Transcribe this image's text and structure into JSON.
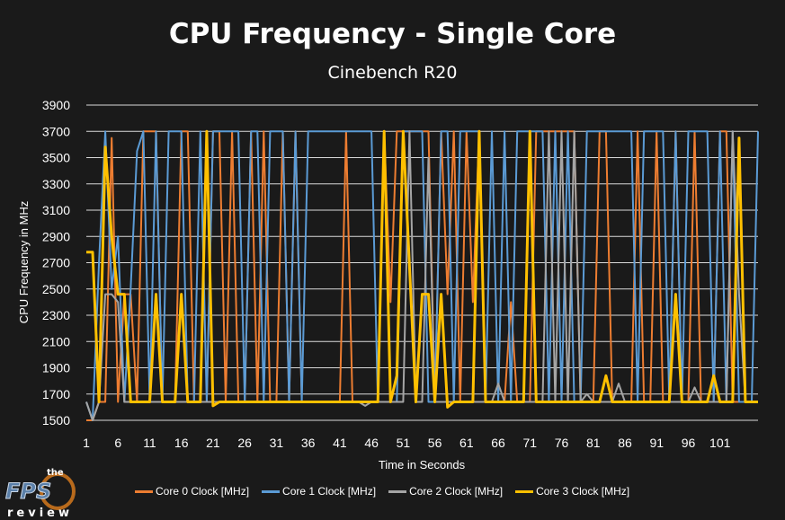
{
  "chart_data": {
    "type": "line",
    "title": "CPU Frequency - Single Core",
    "subtitle": "Cinebench R20",
    "xlabel": "Time in Seconds",
    "ylabel": "CPU Frequency in MHz",
    "xlim": [
      1,
      107
    ],
    "ylim": [
      1500,
      3900
    ],
    "x_ticks": [
      1,
      6,
      11,
      16,
      21,
      26,
      31,
      36,
      41,
      46,
      51,
      56,
      61,
      66,
      71,
      76,
      81,
      86,
      91,
      96,
      101
    ],
    "y_ticks": [
      1500,
      1700,
      1900,
      2100,
      2300,
      2500,
      2700,
      2900,
      3100,
      3300,
      3500,
      3700,
      3900
    ],
    "grid": "horizontal",
    "legend_placement": "bottom",
    "series": [
      {
        "name": "Core 0 Clock [MHz]",
        "color": "#ed7d31",
        "values": [
          1500,
          1500,
          1640,
          1640,
          3650,
          1640,
          2460,
          2460,
          1640,
          3700,
          3700,
          3700,
          1640,
          1640,
          1640,
          3700,
          3700,
          1640,
          1640,
          1640,
          3700,
          3700,
          1640,
          3700,
          1640,
          1640,
          3700,
          1640,
          3700,
          1640,
          1640,
          3700,
          1640,
          3700,
          1640,
          1640,
          1640,
          1640,
          1640,
          1640,
          1640,
          3700,
          1640,
          1640,
          1640,
          1640,
          1640,
          3700,
          2400,
          3700,
          3700,
          3700,
          3700,
          3700,
          3700,
          1640,
          3700,
          2460,
          3700,
          1640,
          3700,
          2400,
          3700,
          1640,
          1640,
          1640,
          1640,
          2400,
          1640,
          1640,
          1640,
          3700,
          3700,
          3700,
          3700,
          3700,
          3700,
          3700,
          1640,
          1640,
          1640,
          3700,
          3700,
          1640,
          1640,
          1640,
          1640,
          3700,
          1640,
          1640,
          3700,
          1640,
          1640,
          3700,
          1640,
          1640,
          3700,
          1640,
          1640,
          1640,
          3700,
          3700,
          1640,
          1640,
          1640,
          1640,
          1640
        ]
      },
      {
        "name": "Core 1 Clock [MHz]",
        "color": "#5b9bd5",
        "values": [
          1640,
          1500,
          2700,
          3700,
          2500,
          2900,
          1640,
          2500,
          3550,
          3700,
          1640,
          3700,
          1640,
          3700,
          3700,
          3700,
          1640,
          1640,
          3700,
          1640,
          3700,
          3700,
          3700,
          3700,
          3700,
          1640,
          3700,
          3700,
          1640,
          3700,
          3700,
          3700,
          1640,
          3700,
          1640,
          3700,
          3700,
          3700,
          3700,
          3700,
          3700,
          3700,
          3700,
          3700,
          3700,
          3700,
          1640,
          3700,
          1640,
          1640,
          3700,
          3700,
          3700,
          3700,
          1640,
          1640,
          3700,
          3700,
          1640,
          3700,
          3700,
          3700,
          3700,
          1640,
          3700,
          1640,
          3700,
          1640,
          3700,
          3700,
          3700,
          3700,
          3700,
          1640,
          3700,
          1640,
          3700,
          1640,
          1640,
          3700,
          3700,
          3700,
          3700,
          3700,
          3700,
          3700,
          3700,
          1640,
          3700,
          3700,
          3700,
          3700,
          1640,
          3700,
          1640,
          3700,
          3700,
          3700,
          3700,
          1640,
          3700,
          1640,
          3700,
          1640,
          1640,
          1640,
          3700
        ]
      },
      {
        "name": "Core 2 Clock [MHz]",
        "color": "#a5a5a5",
        "values": [
          1640,
          1500,
          1640,
          2460,
          2460,
          2400,
          1640,
          1640,
          1640,
          1640,
          1640,
          1640,
          1640,
          1640,
          1640,
          1640,
          1640,
          1640,
          1640,
          1640,
          1640,
          1640,
          1640,
          1640,
          1640,
          1640,
          1640,
          1640,
          1640,
          1640,
          1640,
          1640,
          1640,
          1640,
          1640,
          1640,
          1640,
          1640,
          1640,
          1640,
          1640,
          1640,
          1640,
          1640,
          1610,
          1640,
          1640,
          1640,
          1640,
          1640,
          1640,
          3700,
          1640,
          1640,
          3500,
          1640,
          1640,
          1640,
          1640,
          1640,
          1640,
          1640,
          1640,
          1640,
          1640,
          1780,
          1640,
          1640,
          1640,
          1640,
          1640,
          1640,
          1640,
          3700,
          1640,
          3700,
          1640,
          3700,
          1640,
          1700,
          1640,
          1640,
          1640,
          1640,
          1780,
          1640,
          1640,
          1640,
          1640,
          1640,
          1640,
          1640,
          1640,
          1640,
          1640,
          1640,
          1750,
          1640,
          1640,
          1640,
          1640,
          1640,
          3700,
          2460,
          1640,
          1640,
          1640
        ]
      },
      {
        "name": "Core 3 Clock [MHz]",
        "color": "#ffc000",
        "values": [
          2780,
          2780,
          1640,
          3580,
          2900,
          2460,
          2460,
          1640,
          1640,
          1640,
          1640,
          2460,
          1640,
          1640,
          1640,
          2460,
          1640,
          1640,
          1640,
          3700,
          1610,
          1640,
          1640,
          1640,
          1640,
          1640,
          1640,
          1640,
          1640,
          1640,
          1640,
          1640,
          1640,
          1640,
          1640,
          1640,
          1640,
          1640,
          1640,
          1640,
          1640,
          1640,
          1640,
          1640,
          1640,
          1640,
          1640,
          3700,
          1640,
          1840,
          3700,
          2670,
          1640,
          2460,
          2460,
          1640,
          2460,
          1600,
          1640,
          1640,
          1640,
          1640,
          3700,
          1640,
          1640,
          1640,
          1640,
          1640,
          1640,
          1640,
          3700,
          1640,
          1640,
          1640,
          1640,
          1640,
          1640,
          1640,
          1640,
          1640,
          1640,
          1640,
          1840,
          1640,
          1640,
          1640,
          1640,
          1640,
          1640,
          1640,
          1640,
          1640,
          1640,
          2460,
          1640,
          1640,
          1640,
          1640,
          1640,
          1840,
          1640,
          1640,
          1640,
          3650,
          1640,
          1640,
          1640
        ]
      }
    ]
  },
  "logo": {
    "text_top": "the",
    "text_main": "FPS",
    "text_bottom": "review"
  }
}
